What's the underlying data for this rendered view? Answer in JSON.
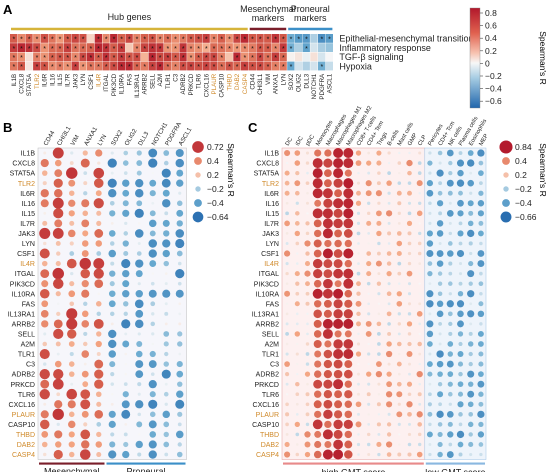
{
  "panels": {
    "a": {
      "letter": "A",
      "groups": [
        {
          "label": "Hub genes",
          "color": "#d6b43a"
        },
        {
          "label": "Mesenchymal\nmarkers",
          "color": "#7a1e2a"
        },
        {
          "label": "Proneural\nmarkers",
          "color": "#3b8fc8"
        }
      ],
      "rows": [
        "Epithelial-mesenchymal transition",
        "Inflammatory response",
        "TGF-β signaling",
        "Hypoxia"
      ],
      "columns": [
        {
          "name": "IL1B",
          "c": "#222"
        },
        {
          "name": "CXCL8",
          "c": "#222"
        },
        {
          "name": "STAT5A",
          "c": "#222"
        },
        {
          "name": "TLR2",
          "c": "#d08a2a"
        },
        {
          "name": "IL6R",
          "c": "#222"
        },
        {
          "name": "IL16",
          "c": "#222"
        },
        {
          "name": "IL15",
          "c": "#222"
        },
        {
          "name": "IL7R",
          "c": "#222"
        },
        {
          "name": "JAK3",
          "c": "#222"
        },
        {
          "name": "LYN",
          "c": "#222"
        },
        {
          "name": "CSF1",
          "c": "#222"
        },
        {
          "name": "IL4R",
          "c": "#d08a2a"
        },
        {
          "name": "ITGAL",
          "c": "#222"
        },
        {
          "name": "PIK3CD",
          "c": "#222"
        },
        {
          "name": "IL10RA",
          "c": "#222"
        },
        {
          "name": "FAS",
          "c": "#222"
        },
        {
          "name": "IL13RA1",
          "c": "#222"
        },
        {
          "name": "ARRB2",
          "c": "#222"
        },
        {
          "name": "SELL",
          "c": "#222"
        },
        {
          "name": "A2M",
          "c": "#222"
        },
        {
          "name": "TLR1",
          "c": "#222"
        },
        {
          "name": "C3",
          "c": "#222"
        },
        {
          "name": "ADRB2",
          "c": "#222"
        },
        {
          "name": "PRKCD",
          "c": "#222"
        },
        {
          "name": "TLR6",
          "c": "#222"
        },
        {
          "name": "CXCL16",
          "c": "#222"
        },
        {
          "name": "PLAUR",
          "c": "#d08a2a"
        },
        {
          "name": "CASP10",
          "c": "#222"
        },
        {
          "name": "THBD",
          "c": "#d08a2a"
        },
        {
          "name": "DAB2",
          "c": "#d08a2a"
        },
        {
          "name": "CASP4",
          "c": "#d08a2a"
        },
        {
          "name": "CD44",
          "c": "#222"
        },
        {
          "name": "CHI3L1",
          "c": "#222"
        },
        {
          "name": "VIM",
          "c": "#222"
        },
        {
          "name": "ANXA1",
          "c": "#222"
        },
        {
          "name": "LYN",
          "c": "#222"
        },
        {
          "name": "SOX2",
          "c": "#222"
        },
        {
          "name": "OLIG2",
          "c": "#222"
        },
        {
          "name": "DLL3",
          "c": "#222"
        },
        {
          "name": "NOTCH1",
          "c": "#222"
        },
        {
          "name": "PDGFRA",
          "c": "#222"
        },
        {
          "name": "ASCL1",
          "c": "#222"
        }
      ],
      "legend": {
        "title": "Spearman's R",
        "ticks": [
          "0.8",
          "0.6",
          "0.4",
          "0.2",
          "0",
          "−0.2",
          "−0.4",
          "−0.6"
        ],
        "min": -0.7,
        "max": 0.85
      }
    },
    "b": {
      "letter": "B",
      "rows": [
        {
          "name": "IL1B",
          "c": "#222"
        },
        {
          "name": "CXCL8",
          "c": "#222"
        },
        {
          "name": "STAT5A",
          "c": "#222"
        },
        {
          "name": "TLR2",
          "c": "#d08a2a"
        },
        {
          "name": "IL6R",
          "c": "#222"
        },
        {
          "name": "IL16",
          "c": "#222"
        },
        {
          "name": "IL15",
          "c": "#222"
        },
        {
          "name": "IL7R",
          "c": "#222"
        },
        {
          "name": "JAK3",
          "c": "#222"
        },
        {
          "name": "LYN",
          "c": "#222"
        },
        {
          "name": "CSF1",
          "c": "#222"
        },
        {
          "name": "IL4R",
          "c": "#d08a2a"
        },
        {
          "name": "ITGAL",
          "c": "#222"
        },
        {
          "name": "PIK3CD",
          "c": "#222"
        },
        {
          "name": "IL10RA",
          "c": "#222"
        },
        {
          "name": "FAS",
          "c": "#222"
        },
        {
          "name": "IL13RA1",
          "c": "#222"
        },
        {
          "name": "ARRB2",
          "c": "#222"
        },
        {
          "name": "SELL",
          "c": "#222"
        },
        {
          "name": "A2M",
          "c": "#222"
        },
        {
          "name": "TLR1",
          "c": "#222"
        },
        {
          "name": "C3",
          "c": "#222"
        },
        {
          "name": "ADRB2",
          "c": "#222"
        },
        {
          "name": "PRKCD",
          "c": "#222"
        },
        {
          "name": "TLR6",
          "c": "#222"
        },
        {
          "name": "CXCL16",
          "c": "#222"
        },
        {
          "name": "PLAUR",
          "c": "#d08a2a"
        },
        {
          "name": "CASP10",
          "c": "#222"
        },
        {
          "name": "THBD",
          "c": "#d08a2a"
        },
        {
          "name": "DAB2",
          "c": "#d08a2a"
        },
        {
          "name": "CASP4",
          "c": "#d08a2a"
        }
      ],
      "columns": [
        "CD44",
        "CHI3L1",
        "VIM",
        "ANXA1",
        "LYN",
        "SOX2",
        "OLIG2",
        "DLL3",
        "NOTCH1",
        "PDGFRA",
        "ASCL1"
      ],
      "groups": [
        {
          "label": "Mesenchymal\nmarkers",
          "color": "#7a1e2a",
          "span": 5
        },
        {
          "label": "Proneural\nmarkers",
          "color": "#3b8fc8",
          "span": 6
        }
      ],
      "legend": {
        "title": "Spearman's R",
        "ticks": [
          "0.72",
          "0.4",
          "0.2",
          "−0.2",
          "−0.4",
          "−0.64"
        ],
        "values": [
          0.72,
          0.4,
          0.2,
          -0.2,
          -0.4,
          -0.64
        ]
      }
    },
    "c": {
      "letter": "C",
      "columns": [
        "DC",
        "iDC",
        "pDC",
        "Monocytes",
        "Macrophages",
        "Macrophages M1",
        "Macrophages M2",
        "CD8+ T-cells",
        "CD4+ Tem",
        "Tregs",
        "B-cells",
        "Mast cells",
        "GMP",
        "CLP",
        "Pericytes",
        "CD4+ Tcm",
        "NK cells",
        "Plasma cells",
        "Eosinophils",
        "MEP"
      ],
      "high_span": 14,
      "groups": [
        {
          "label": "high GMT score",
          "color": "#e88a8a",
          "span": 14
        },
        {
          "label": "low GMT score",
          "color": "#8ab8e0",
          "span": 6
        }
      ],
      "legend": {
        "title": "Spearman's R",
        "ticks": [
          "0.84",
          "0.4",
          "0.2",
          "−0.2",
          "−0.4",
          "−0.66"
        ],
        "values": [
          0.84,
          0.4,
          0.2,
          -0.2,
          -0.4,
          -0.66
        ]
      }
    }
  }
}
